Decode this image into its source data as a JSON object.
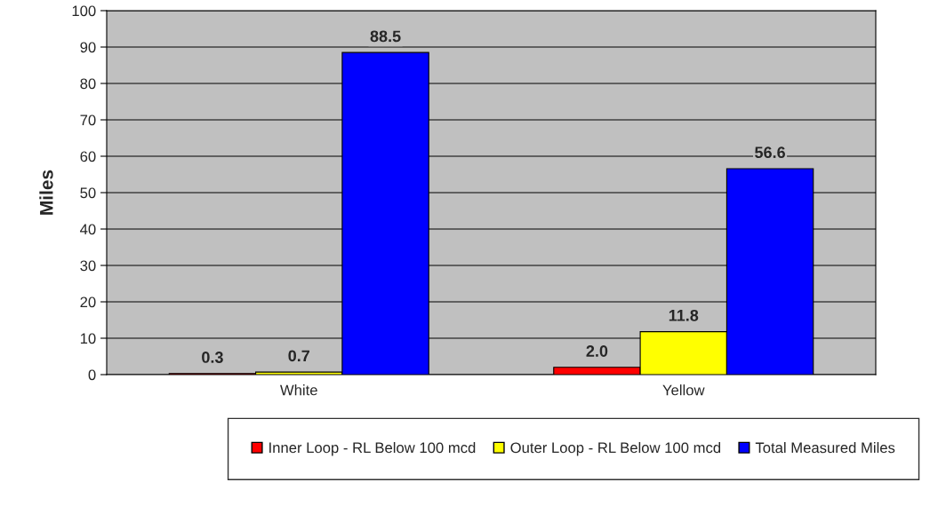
{
  "chart_data": {
    "type": "bar",
    "ylabel": "Miles",
    "categories": [
      "White",
      "Yellow"
    ],
    "series": [
      {
        "name": "Inner Loop - RL Below 100 mcd",
        "color": "#ff0000",
        "values": [
          0.3,
          2.0
        ],
        "value_labels": [
          "0.3",
          "2.0"
        ]
      },
      {
        "name": "Outer Loop - RL Below 100 mcd",
        "color": "#ffff00",
        "values": [
          0.7,
          11.8
        ],
        "value_labels": [
          "0.7",
          "11.8"
        ]
      },
      {
        "name": "Total Measured Miles",
        "color": "#0000ff",
        "values": [
          88.5,
          56.6
        ],
        "value_labels": [
          "88.5",
          "56.6"
        ]
      }
    ],
    "ylim": [
      0,
      100
    ],
    "yticks": [
      0,
      10,
      20,
      30,
      40,
      50,
      60,
      70,
      80,
      90,
      100
    ],
    "grid": "y",
    "legend": "bottom"
  }
}
